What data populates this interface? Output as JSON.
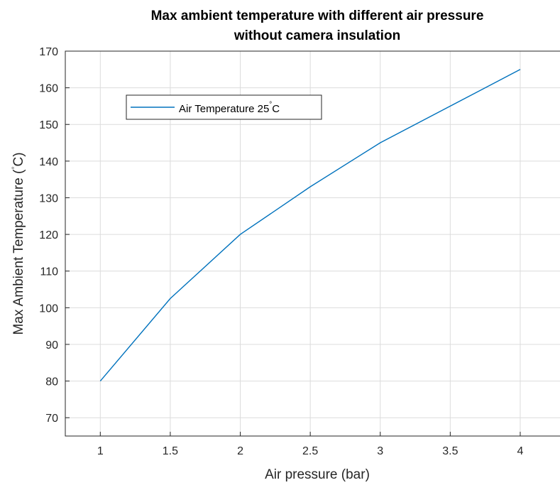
{
  "chart_data": {
    "type": "line",
    "title": [
      "Max ambient temperature with different air pressure",
      "without camera insulation"
    ],
    "xlabel": "Air pressure (bar)",
    "ylabel": {
      "prefix": "Max Ambient Temperature (",
      "superscript": "°",
      "suffix": "C)"
    },
    "xlim": [
      0.75,
      4.35
    ],
    "ylim": [
      65,
      170
    ],
    "xticks": [
      1,
      1.5,
      2,
      2.5,
      3,
      3.5,
      4
    ],
    "yticks": [
      70,
      80,
      90,
      100,
      110,
      120,
      130,
      140,
      150,
      160,
      170
    ],
    "xtick_labels": [
      "1",
      "1.5",
      "2",
      "2.5",
      "3",
      "3.5",
      "4"
    ],
    "ytick_labels": [
      "70",
      "80",
      "90",
      "100",
      "110",
      "120",
      "130",
      "140",
      "150",
      "160",
      "170"
    ],
    "grid": true,
    "legend_position": "top-left",
    "series": [
      {
        "name": {
          "prefix": "Air Temperature 25",
          "superscript": "°",
          "suffix": "C"
        },
        "color": "#0072BD",
        "x": [
          1,
          1.5,
          2,
          2.5,
          3,
          3.5,
          4
        ],
        "y": [
          80,
          102.5,
          120,
          133,
          145,
          155,
          165
        ]
      }
    ]
  }
}
